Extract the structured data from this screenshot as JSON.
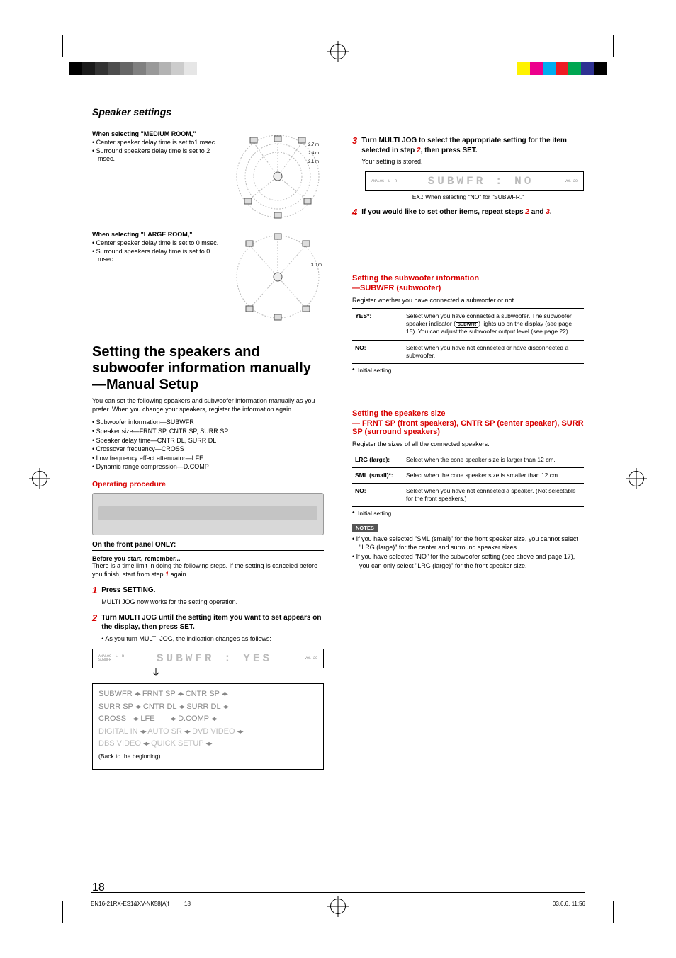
{
  "page": {
    "section_title": "Speaker settings",
    "page_number": "18",
    "footer_left": "EN16-21RX-ES1&XV-NK58[A]f",
    "footer_mid": "18",
    "footer_right": "03.6.6, 11:56"
  },
  "color_bars": {
    "left_gray": [
      "#000000",
      "#1a1a1a",
      "#333333",
      "#4d4d4d",
      "#666666",
      "#808080",
      "#999999",
      "#b3b3b3",
      "#cccccc",
      "#e6e6e6",
      "#ffffff"
    ],
    "right_color": [
      "#ffffff",
      "#fff200",
      "#ec008c",
      "#00aeef",
      "#ed1c24",
      "#00a651",
      "#2e3192",
      "#000000"
    ]
  },
  "rooms": {
    "medium": {
      "label": "When selecting \"MEDIUM ROOM,\"",
      "items": [
        "Center speaker delay time is set to1 msec.",
        "Surround speakers delay time is set to 2 msec."
      ],
      "distances": [
        "2.7 m",
        "2.4 m",
        "2.1 m"
      ]
    },
    "large": {
      "label": "When selecting \"LARGE ROOM,\"",
      "items": [
        "Center speaker delay time is set to 0 msec.",
        "Surround speakers delay time is set to 0 msec."
      ],
      "distances": [
        "3.0 m"
      ]
    }
  },
  "manual": {
    "heading": "Setting the speakers and subwoofer information manually—Manual Setup",
    "intro": "You can set the following speakers and subwoofer information manually as you prefer. When you change your speakers, register the information again.",
    "items": [
      "Subwoofer information—SUBWFR",
      "Speaker size—FRNT SP, CNTR SP, SURR SP",
      "Speaker delay time—CNTR DL, SURR DL",
      "Crossover frequency—CROSS",
      "Low frequency effect attenuator—LFE",
      "Dynamic range compression—D.COMP"
    ]
  },
  "operating": {
    "title": "Operating procedure",
    "panel_sub": "On the front panel ONLY:",
    "remember": "Before you start, remember...",
    "remember_text_a": "There is a time limit in doing the following steps. If the setting is canceled before you finish, start from step ",
    "remember_text_b": " again.",
    "steps": {
      "s1": {
        "num": "1",
        "lead": "Press SETTING.",
        "body": "MULTI JOG now works for the setting operation."
      },
      "s2": {
        "num": "2",
        "lead": "Turn MULTI JOG until the setting item you want to set appears on the display, then press SET.",
        "note": "As you turn MULTI JOG, the indication changes as follows:"
      },
      "s3": {
        "num": "3",
        "lead_a": "Turn MULTI JOG to select the appropriate setting for the item selected in step ",
        "lead_b": ", then press SET.",
        "body": "Your setting is stored."
      },
      "s4": {
        "num": "4",
        "lead_a": "If you would like to set other items, repeat steps ",
        "lead_mid": " and ",
        "lead_b": "."
      }
    },
    "lcd_yes": {
      "small": "ANALOG  L  R\nSUBWFR",
      "text": "SUBWFR : YES",
      "vol": "VOL 20"
    },
    "lcd_no": {
      "small": "ANALOG  L  R",
      "text": "SUBWFR :  NO",
      "vol": "VOL 20",
      "caption": "EX.: When selecting \"NO\" for \"SUBWFR.\""
    },
    "cycle": {
      "row1": [
        "SUBWFR",
        "FRNT SP",
        "CNTR SP"
      ],
      "row2": [
        "SURR SP",
        "CNTR DL",
        "SURR DL"
      ],
      "row3": [
        "CROSS",
        "LFE",
        "D.COMP"
      ],
      "row4": [
        "DIGITAL IN",
        "AUTO SR",
        "DVD VIDEO"
      ],
      "row5": [
        "DBS VIDEO",
        "QUICK SETUP"
      ],
      "back": "(Back to the beginning)"
    }
  },
  "subwfr": {
    "head": "Setting the subwoofer information",
    "sub": "—SUBWFR (subwoofer)",
    "desc": "Register whether you have connected a subwoofer or not.",
    "rows": [
      {
        "k": "YES*:",
        "v_a": "Select when you have connected a subwoofer. The subwoofer speaker indicator (",
        "v_ind": "SUBWFR",
        "v_b": ") lights up on the display (see page 15). You can adjust the subwoofer output level (see page 22)."
      },
      {
        "k": "NO:",
        "v": "Select when you have not connected or have disconnected a subwoofer."
      }
    ],
    "footnote": "*  Initial setting"
  },
  "spsize": {
    "head": "Setting the speakers size",
    "sub": "— FRNT SP (front speakers), CNTR SP (center speaker), SURR SP  (surround speakers)",
    "desc": "Register the sizes of all the connected speakers.",
    "rows": [
      {
        "k": "LRG (large):",
        "v": "Select when the cone speaker size is larger than 12 cm."
      },
      {
        "k": "SML (small)*:",
        "v": "Select when the cone speaker size is smaller than 12 cm."
      },
      {
        "k": "NO:",
        "v": "Select when you have not connected a speaker. (Not selectable for the front speakers.)"
      }
    ],
    "footnote": "*  Initial setting",
    "notes_label": "NOTES",
    "notes": [
      "If you have selected \"SML (small)\" for the front speaker size, you cannot select \"LRG (large)\" for the center and surround speaker sizes.",
      "If you have selected \"NO\" for the subwoofer setting (see above and page 17), you can only select \"LRG (large)\" for the front speaker size."
    ]
  }
}
